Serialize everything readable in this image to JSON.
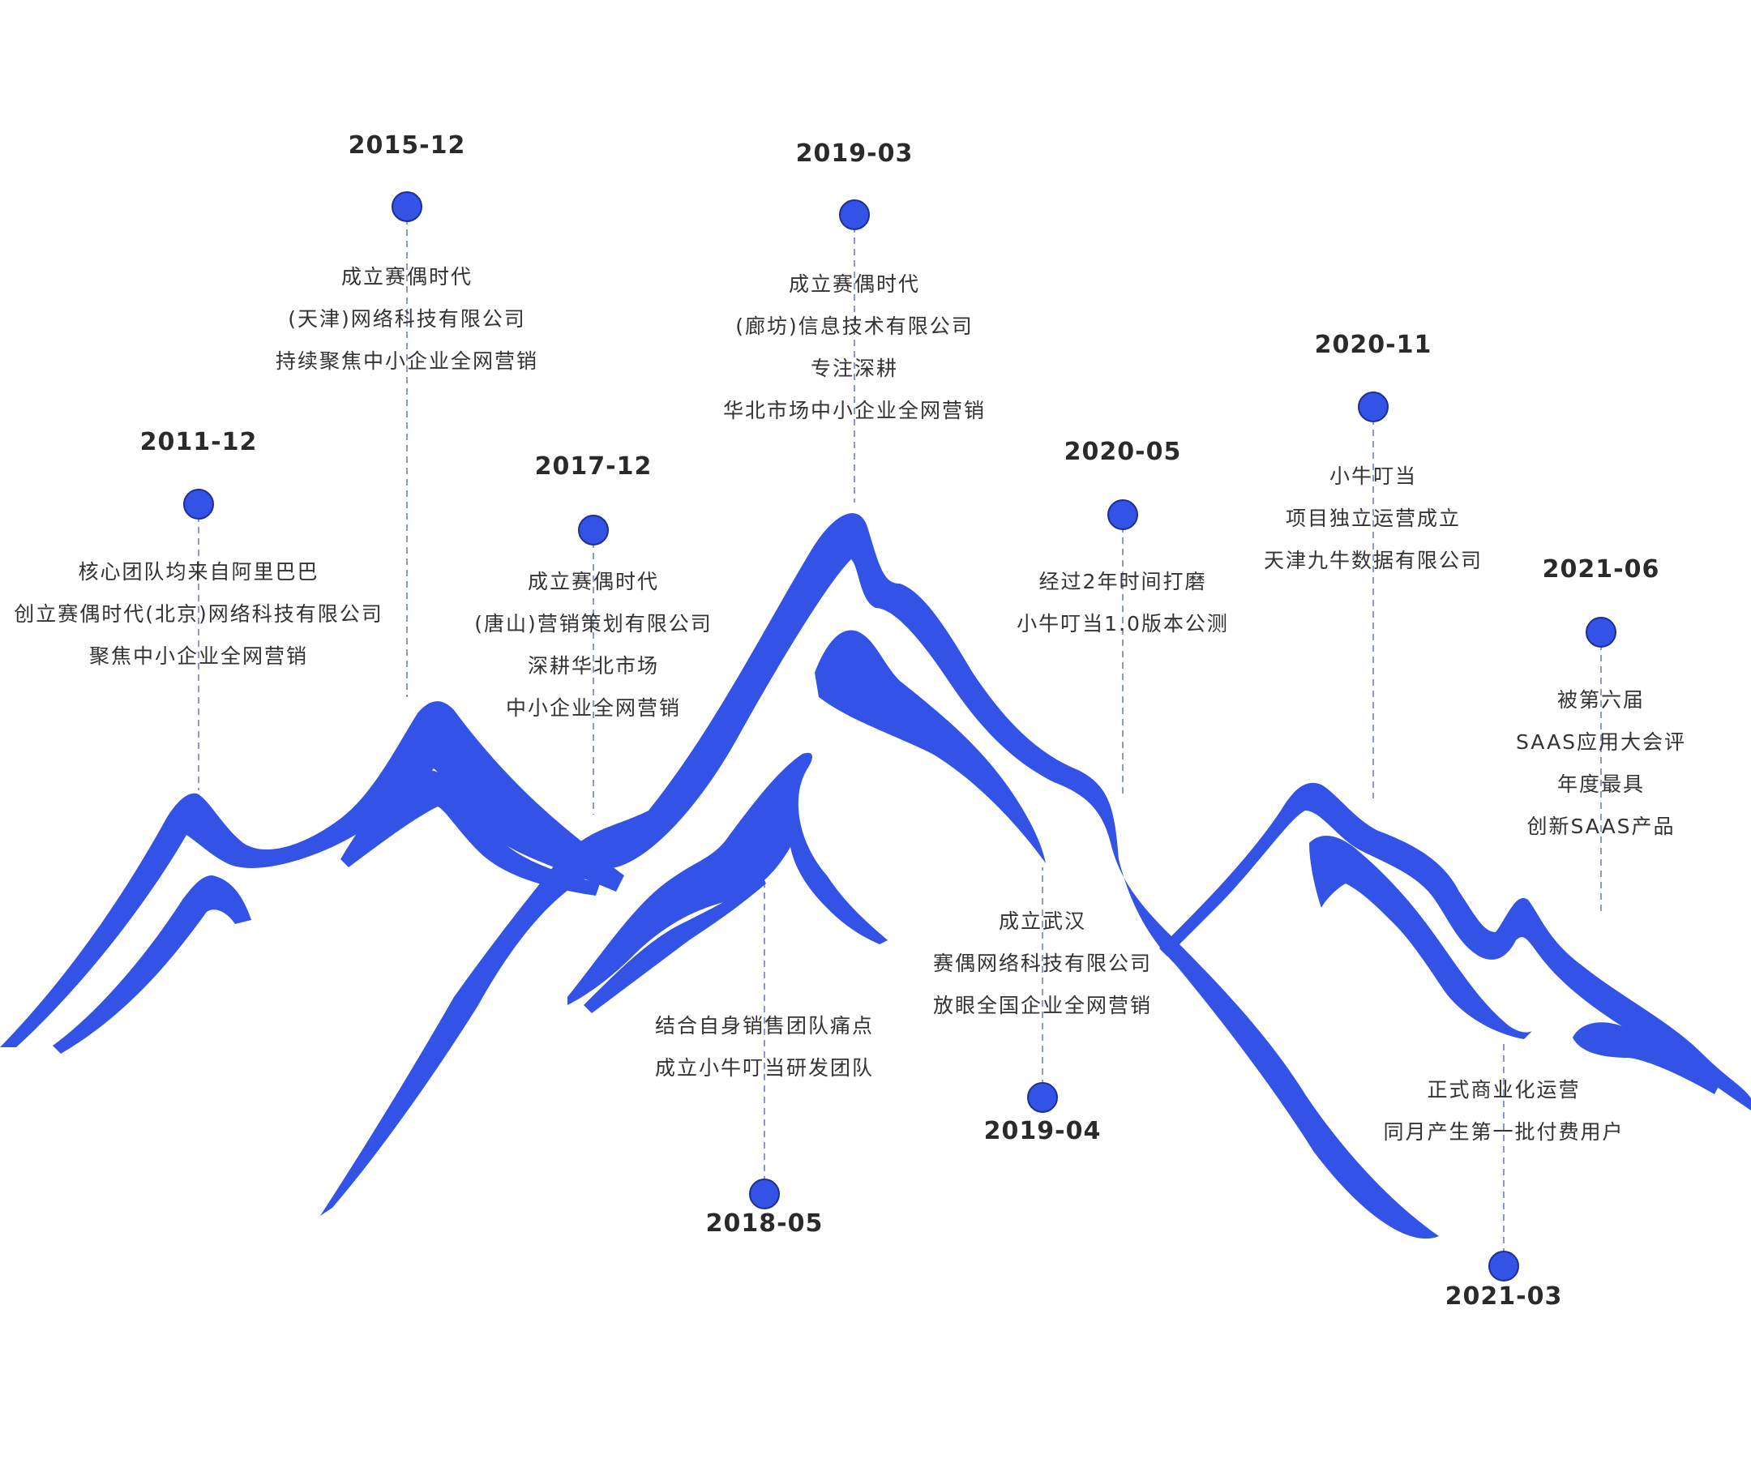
{
  "accent_color": "#3352e6",
  "events": [
    {
      "id": "2011-12",
      "date": "2011-12",
      "lines": [
        "核心团队均来自阿里巴巴",
        "创立赛偶时代(北京)网络科技有限公司",
        "聚焦中小企业全网营销"
      ]
    },
    {
      "id": "2015-12",
      "date": "2015-12",
      "lines": [
        "成立赛偶时代",
        "(天津)网络科技有限公司",
        "持续聚焦中小企业全网营销"
      ]
    },
    {
      "id": "2017-12",
      "date": "2017-12",
      "lines": [
        "成立赛偶时代",
        "(唐山)营销策划有限公司",
        "深耕华北市场",
        "中小企业全网营销"
      ]
    },
    {
      "id": "2018-05",
      "date": "2018-05",
      "lines": [
        "结合自身销售团队痛点",
        "成立小牛叮当研发团队"
      ]
    },
    {
      "id": "2019-03",
      "date": "2019-03",
      "lines": [
        "成立赛偶时代",
        "(廊坊)信息技术有限公司",
        "专注深耕",
        "华北市场中小企业全网营销"
      ]
    },
    {
      "id": "2019-04",
      "date": "2019-04",
      "lines": [
        "成立武汉",
        "赛偶网络科技有限公司",
        "放眼全国企业全网营销"
      ]
    },
    {
      "id": "2020-05",
      "date": "2020-05",
      "lines": [
        "经过2年时间打磨",
        "小牛叮当1.0版本公测"
      ]
    },
    {
      "id": "2020-11",
      "date": "2020-11",
      "lines": [
        "小牛叮当",
        "项目独立运营成立",
        "天津九牛数据有限公司"
      ]
    },
    {
      "id": "2021-03",
      "date": "2021-03",
      "lines": [
        "正式商业化运营",
        "同月产生第一批付费用户"
      ]
    },
    {
      "id": "2021-06",
      "date": "2021-06",
      "lines": [
        "被第六届",
        "SAAS应用大会评",
        "年度最具",
        "创新SAAS产品"
      ]
    }
  ]
}
